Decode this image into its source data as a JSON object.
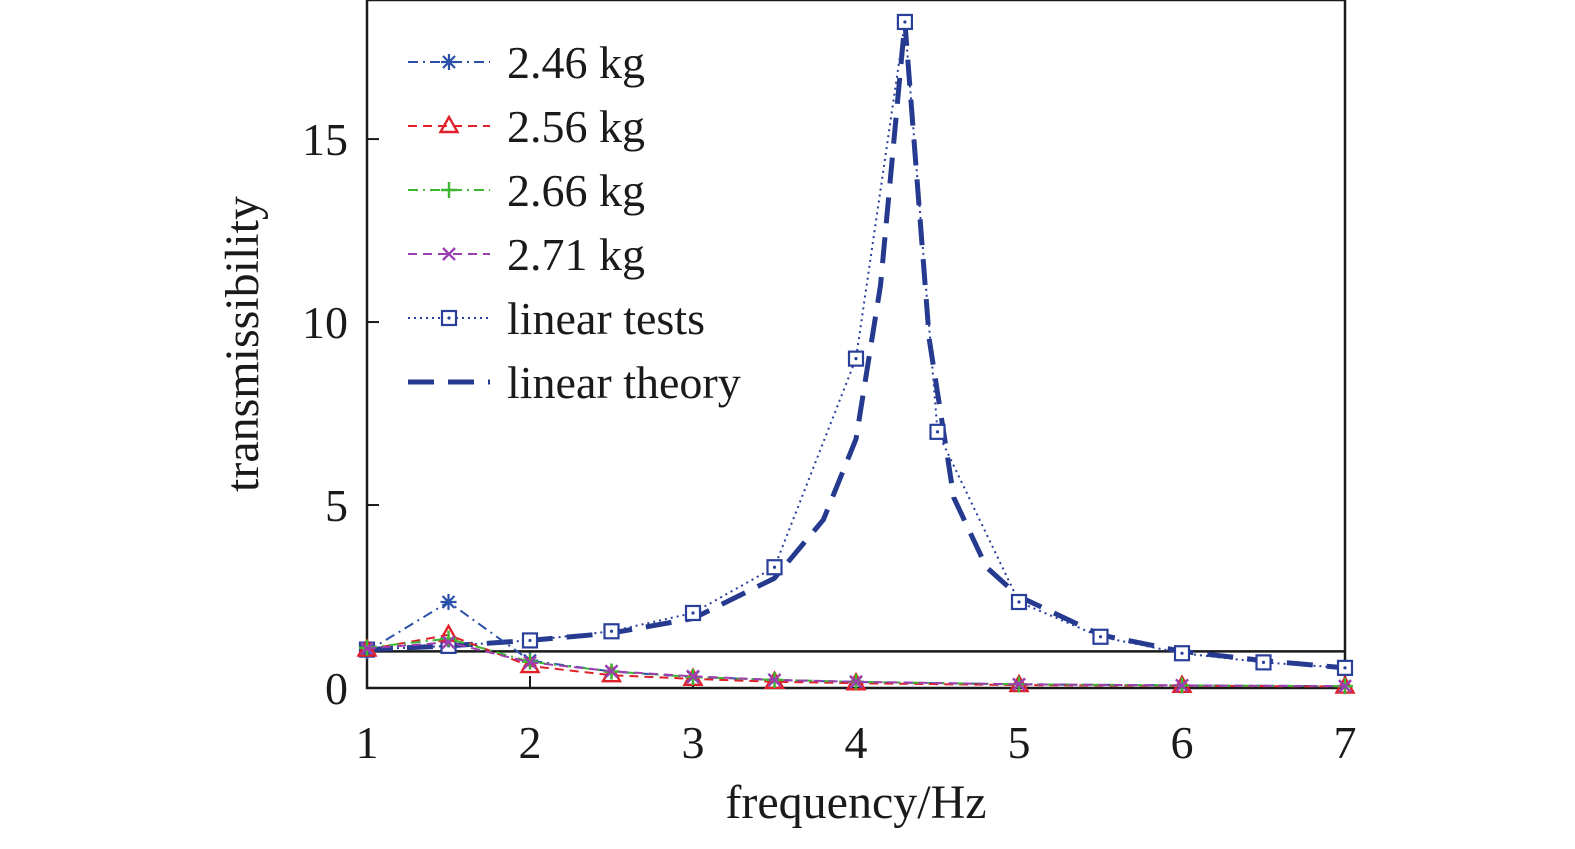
{
  "chart_data": {
    "type": "line",
    "xlabel": "frequency/Hz",
    "ylabel": "transmissibility",
    "xlim": [
      1,
      7
    ],
    "ylim": [
      0,
      18.8
    ],
    "xticks": [
      "1",
      "2",
      "3",
      "4",
      "5",
      "6",
      "7"
    ],
    "yticks": [
      "0",
      "5",
      "10",
      "15"
    ],
    "reference_line": {
      "y": 1.0
    },
    "legend_position": "top-left",
    "series": [
      {
        "name": "2.46 kg",
        "color": "#2a50a8",
        "marker": "asterisk",
        "dash": "dashdot",
        "x": [
          1,
          1.5,
          2,
          2.5,
          3,
          3.5,
          4,
          5,
          6,
          7
        ],
        "y": [
          1.0,
          2.35,
          0.75,
          0.45,
          0.3,
          0.22,
          0.16,
          0.1,
          0.07,
          0.05
        ]
      },
      {
        "name": "2.56 kg",
        "color": "#e0202a",
        "marker": "triangle",
        "dash": "dashed",
        "x": [
          1,
          1.5,
          2,
          2.5,
          3,
          3.5,
          4,
          5,
          6,
          7
        ],
        "y": [
          1.05,
          1.45,
          0.6,
          0.35,
          0.25,
          0.17,
          0.13,
          0.08,
          0.06,
          0.04
        ]
      },
      {
        "name": "2.66 kg",
        "color": "#3fb534",
        "marker": "plus",
        "dash": "dashdot",
        "x": [
          1,
          1.5,
          2,
          2.5,
          3,
          3.5,
          4,
          5,
          6,
          7
        ],
        "y": [
          1.1,
          1.35,
          0.72,
          0.45,
          0.3,
          0.22,
          0.17,
          0.1,
          0.07,
          0.05
        ]
      },
      {
        "name": "2.71 kg",
        "color": "#9b3fb0",
        "marker": "cross",
        "dash": "dashed",
        "x": [
          1,
          1.5,
          2,
          2.5,
          3,
          3.5,
          4,
          5,
          6,
          7
        ],
        "y": [
          1.08,
          1.25,
          0.7,
          0.46,
          0.32,
          0.22,
          0.17,
          0.1,
          0.07,
          0.05
        ]
      },
      {
        "name": "linear tests",
        "color": "#2a3f9a",
        "marker": "square",
        "dash": "dotted",
        "x": [
          1,
          1.5,
          2,
          2.5,
          3,
          3.5,
          4,
          4.3,
          4.5,
          5,
          5.5,
          6,
          6.5,
          7
        ],
        "y": [
          1.05,
          1.15,
          1.3,
          1.55,
          2.05,
          3.3,
          9.0,
          18.2,
          7.0,
          2.35,
          1.4,
          0.95,
          0.7,
          0.55
        ]
      },
      {
        "name": "linear theory",
        "color": "#253a8f",
        "marker": "none",
        "dash": "longdash",
        "x": [
          1,
          1.5,
          2,
          2.5,
          3,
          3.5,
          3.8,
          4,
          4.15,
          4.3,
          4.45,
          4.6,
          4.8,
          5,
          5.5,
          6,
          6.5,
          7
        ],
        "y": [
          1.05,
          1.15,
          1.3,
          1.5,
          1.9,
          3.0,
          4.6,
          6.8,
          11.0,
          18.2,
          9.5,
          5.2,
          3.3,
          2.5,
          1.45,
          1.0,
          0.75,
          0.55
        ]
      }
    ]
  }
}
